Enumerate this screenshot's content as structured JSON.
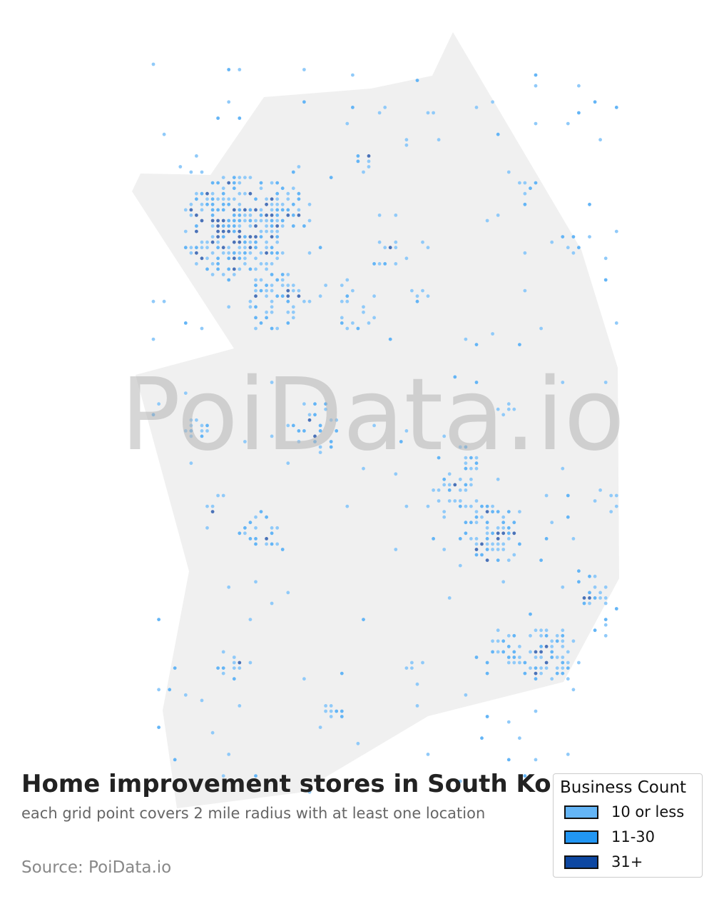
{
  "title": "Home improvement stores in South Korea",
  "subtitle": "each grid point covers 2 mile radius with at least one location",
  "source": "Source: PoiData.io",
  "watermark": "PoiData.io",
  "legend": {
    "title": "Business Count",
    "items": [
      {
        "label": "10 or less",
        "color": "#64b5f6"
      },
      {
        "label": "11-30",
        "color": "#2196f3"
      },
      {
        "label": "31+",
        "color": "#0d47a1"
      }
    ]
  },
  "colors": {
    "land": "#f0f0f0",
    "background": "#ffffff"
  },
  "chart_data": {
    "type": "grid-point map",
    "region": "South Korea",
    "categories": [
      "10 or less",
      "11-30",
      "31+"
    ],
    "grid_radius_miles": 2
  }
}
